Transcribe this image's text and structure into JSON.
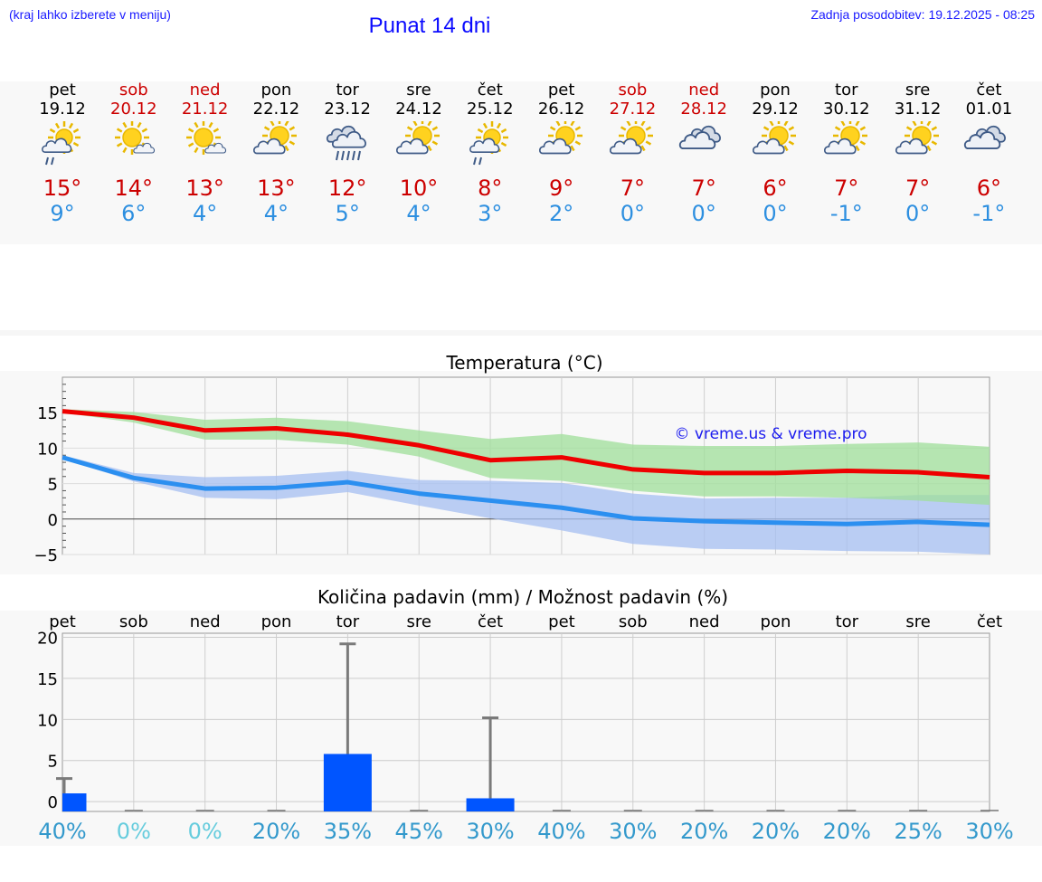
{
  "header": {
    "hint": "(kraj lahko izberete v meniju)",
    "title": "Punat 14 dni",
    "updated": "Zadnja posodobitev: 19.12.2025 - 08:25"
  },
  "colors": {
    "max_temp": "#ee0000",
    "min_temp": "#2b8ff0",
    "max_band": "#9fdf99",
    "min_band": "#a6bff2",
    "precip_bar": "#0055ff",
    "prob_text": "#3399cc",
    "prob_zero_text": "#66ccdd",
    "weekend_text": "#cc0000"
  },
  "days": [
    {
      "name": "pet",
      "date": "19.12",
      "weekend": false,
      "icon": "sun-cloud-drizzle-icon",
      "tmax": "15°",
      "tmin": "9°"
    },
    {
      "name": "sob",
      "date": "20.12",
      "weekend": true,
      "icon": "sun-small-cloud-icon",
      "tmax": "14°",
      "tmin": "6°"
    },
    {
      "name": "ned",
      "date": "21.12",
      "weekend": true,
      "icon": "sun-small-cloud-icon",
      "tmax": "13°",
      "tmin": "4°"
    },
    {
      "name": "pon",
      "date": "22.12",
      "weekend": false,
      "icon": "sun-cloud-icon",
      "tmax": "13°",
      "tmin": "4°"
    },
    {
      "name": "tor",
      "date": "23.12",
      "weekend": false,
      "icon": "cloud-rain-icon",
      "tmax": "12°",
      "tmin": "5°"
    },
    {
      "name": "sre",
      "date": "24.12",
      "weekend": false,
      "icon": "sun-cloud-icon",
      "tmax": "10°",
      "tmin": "4°"
    },
    {
      "name": "čet",
      "date": "25.12",
      "weekend": false,
      "icon": "sun-cloud-drizzle-icon",
      "tmax": "8°",
      "tmin": "3°"
    },
    {
      "name": "pet",
      "date": "26.12",
      "weekend": false,
      "icon": "sun-cloud-icon",
      "tmax": "9°",
      "tmin": "2°"
    },
    {
      "name": "sob",
      "date": "27.12",
      "weekend": true,
      "icon": "sun-cloud-icon",
      "tmax": "7°",
      "tmin": "0°"
    },
    {
      "name": "ned",
      "date": "28.12",
      "weekend": true,
      "icon": "cloudy-icon",
      "tmax": "7°",
      "tmin": "0°"
    },
    {
      "name": "pon",
      "date": "29.12",
      "weekend": false,
      "icon": "sun-cloud-icon",
      "tmax": "6°",
      "tmin": "0°"
    },
    {
      "name": "tor",
      "date": "30.12",
      "weekend": false,
      "icon": "sun-cloud-icon",
      "tmax": "7°",
      "tmin": "-1°"
    },
    {
      "name": "sre",
      "date": "31.12",
      "weekend": false,
      "icon": "sun-cloud-icon",
      "tmax": "7°",
      "tmin": "0°"
    },
    {
      "name": "čet",
      "date": "01.01",
      "weekend": false,
      "icon": "cloudy-icon",
      "tmax": "6°",
      "tmin": "-1°"
    }
  ],
  "chart_data": [
    {
      "type": "line",
      "title": "Temperatura (°C)",
      "annotation": "© vreme.us & vreme.pro",
      "xlabel": "",
      "ylabel": "",
      "x": [
        0,
        1,
        2,
        3,
        4,
        5,
        6,
        7,
        8,
        9,
        10,
        11,
        12,
        13
      ],
      "ylim": [
        -5,
        20
      ],
      "yticks": [
        -5,
        0,
        5,
        10,
        15
      ],
      "ytick_labels": [
        "−5",
        "0",
        "5",
        "10",
        "15"
      ],
      "grid": true,
      "series": [
        {
          "name": "max",
          "values": [
            15.2,
            14.3,
            12.5,
            12.8,
            11.9,
            10.4,
            8.3,
            8.7,
            7.0,
            6.5,
            6.5,
            6.8,
            6.6,
            5.9
          ],
          "band_low": [
            15.0,
            13.6,
            11.2,
            11.2,
            10.5,
            8.8,
            5.8,
            5.4,
            4.0,
            3.2,
            3.2,
            3.0,
            2.6,
            2.0
          ],
          "band_high": [
            15.5,
            15.1,
            14.0,
            14.3,
            13.8,
            12.5,
            11.3,
            12.0,
            10.5,
            10.3,
            10.3,
            10.6,
            10.8,
            10.2
          ]
        },
        {
          "name": "min",
          "values": [
            8.7,
            5.8,
            4.3,
            4.4,
            5.2,
            3.6,
            2.6,
            1.6,
            0.1,
            -0.3,
            -0.5,
            -0.7,
            -0.4,
            -0.8
          ],
          "band_low": [
            8.5,
            5.3,
            3.0,
            2.8,
            3.8,
            1.9,
            0.1,
            -1.6,
            -3.5,
            -4.2,
            -4.3,
            -4.5,
            -4.6,
            -5.0
          ],
          "band_high": [
            9.0,
            6.5,
            5.9,
            6.1,
            6.8,
            5.5,
            5.4,
            5.1,
            3.6,
            2.9,
            3.0,
            3.0,
            3.4,
            3.4
          ]
        }
      ]
    },
    {
      "type": "bar",
      "title": "Količina padavin (mm) / Možnost padavin (%)",
      "categories": [
        "pet",
        "sob",
        "ned",
        "pon",
        "tor",
        "sre",
        "čet",
        "pet",
        "sob",
        "ned",
        "pon",
        "tor",
        "sre",
        "čet"
      ],
      "values": [
        1.0,
        0,
        0,
        0,
        5.8,
        0,
        0.4,
        0,
        0,
        0,
        0,
        0,
        0,
        0
      ],
      "error_high": [
        2.8,
        0,
        0,
        0,
        19.2,
        0,
        10.2,
        0,
        0,
        0,
        0,
        0,
        0,
        0
      ],
      "ylim": [
        -1.2,
        20.5
      ],
      "yticks": [
        0,
        5,
        10,
        15,
        20
      ],
      "ytick_labels": [
        "0",
        "5",
        "10",
        "15",
        "20"
      ],
      "probability": [
        "40%",
        "0%",
        "0%",
        "20%",
        "35%",
        "45%",
        "30%",
        "40%",
        "30%",
        "20%",
        "20%",
        "20%",
        "25%",
        "30%"
      ],
      "grid": true
    }
  ]
}
